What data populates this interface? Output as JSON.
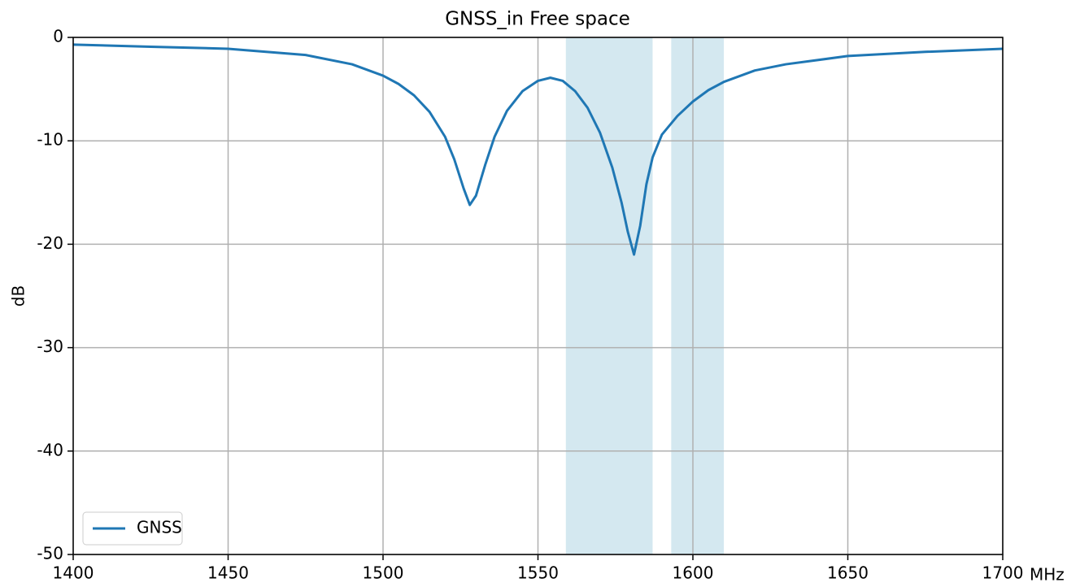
{
  "chart_data": {
    "type": "line",
    "title": "GNSS_in Free space",
    "xlabel": "MHz",
    "ylabel": "dB",
    "x": [
      1400,
      1425,
      1450,
      1475,
      1490,
      1500,
      1505,
      1510,
      1515,
      1520,
      1523,
      1526,
      1528,
      1530,
      1533,
      1536,
      1540,
      1545,
      1550,
      1554,
      1558,
      1562,
      1566,
      1570,
      1574,
      1577,
      1579,
      1581,
      1583,
      1585,
      1587,
      1590,
      1595,
      1600,
      1605,
      1610,
      1620,
      1630,
      1650,
      1675,
      1700
    ],
    "series": [
      {
        "name": "GNSS",
        "color": "#1f77b4",
        "values": [
          -0.7,
          -0.9,
          -1.1,
          -1.7,
          -2.6,
          -3.7,
          -4.5,
          -5.6,
          -7.2,
          -9.6,
          -11.8,
          -14.6,
          -16.2,
          -15.3,
          -12.3,
          -9.6,
          -7.1,
          -5.2,
          -4.2,
          -3.9,
          -4.2,
          -5.2,
          -6.8,
          -9.2,
          -12.6,
          -16.0,
          -18.8,
          -21.0,
          -18.2,
          -14.2,
          -11.6,
          -9.4,
          -7.6,
          -6.2,
          -5.1,
          -4.3,
          -3.2,
          -2.6,
          -1.8,
          -1.4,
          -1.1
        ]
      }
    ],
    "spans": [
      {
        "x": [
          1559,
          1587
        ],
        "color": "#d4e8f0"
      },
      {
        "x": [
          1593,
          1610
        ],
        "color": "#d4e8f0"
      }
    ],
    "xlim": [
      1400,
      1700
    ],
    "xticks": [
      1400,
      1450,
      1500,
      1550,
      1600,
      1650,
      1700
    ],
    "ylim": [
      -50,
      0
    ],
    "yticks": [
      0,
      -10,
      -20,
      -30,
      -40,
      -50
    ],
    "grid": true,
    "legend": "lower left"
  }
}
